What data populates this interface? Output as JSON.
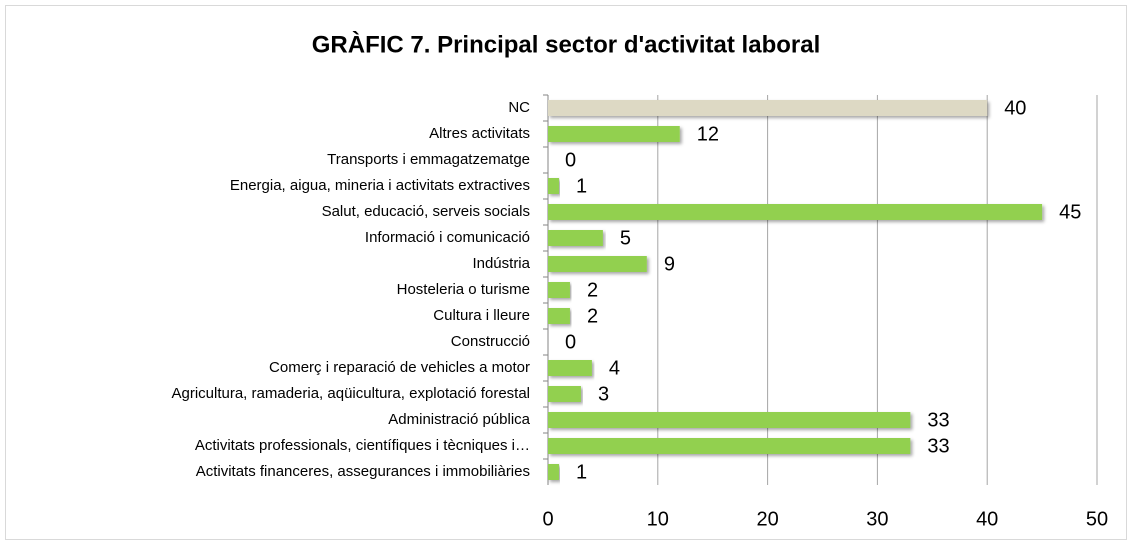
{
  "chart_data": {
    "type": "barh",
    "title": "GRÀFIC 7. Principal sector d'activitat laboral",
    "categories": [
      "NC",
      "Altres activitats",
      "Transports i emmagatzematge",
      "Energia, aigua, mineria i activitats extractives",
      "Salut, educació, serveis socials",
      "Informació i comunicació",
      "Indústria",
      "Hosteleria o turisme",
      "Cultura i lleure",
      "Construcció",
      "Comerç i reparació de vehicles a motor",
      "Agricultura, ramaderia, aqüicultura, explotació forestal",
      "Administració pública",
      "Activitats professionals, científiques i tècniques i…",
      "Activitats financeres, assegurances i immobiliàries"
    ],
    "values": [
      40,
      12,
      0,
      1,
      45,
      5,
      9,
      2,
      2,
      0,
      4,
      3,
      33,
      33,
      1
    ],
    "colors": [
      "#ddd9c4",
      "#92d050",
      "#92d050",
      "#92d050",
      "#92d050",
      "#92d050",
      "#92d050",
      "#92d050",
      "#92d050",
      "#92d050",
      "#92d050",
      "#92d050",
      "#92d050",
      "#92d050",
      "#92d050"
    ],
    "xlim": [
      0,
      50
    ],
    "xticks": [
      0,
      10,
      20,
      30,
      40,
      50
    ],
    "grid": true
  }
}
